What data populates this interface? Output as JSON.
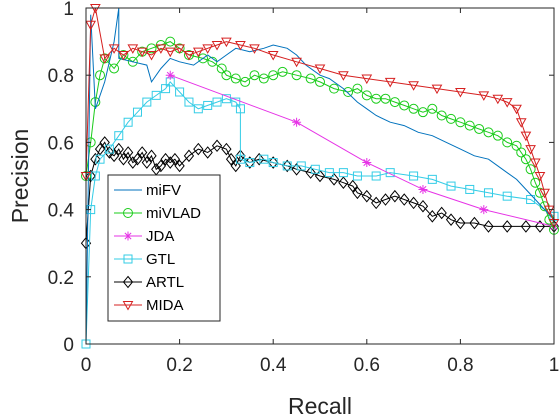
{
  "chart_data": {
    "type": "line",
    "xlabel": "Recall",
    "ylabel": "Precision",
    "xlim": [
      0,
      1
    ],
    "ylim": [
      0,
      1
    ],
    "xticks": [
      "0",
      "0.2",
      "0.4",
      "0.6",
      "0.8",
      "1"
    ],
    "yticks": [
      "0",
      "0.2",
      "0.4",
      "0.6",
      "0.8",
      "1"
    ],
    "grid": false,
    "legend_position": "lower-left",
    "series": [
      {
        "name": "miFV",
        "color": "#0072BD",
        "marker": "none",
        "points": [
          [
            0.0,
            0.0
          ],
          [
            0.01,
            0.98
          ],
          [
            0.02,
            0.7
          ],
          [
            0.04,
            0.78
          ],
          [
            0.06,
            0.9
          ],
          [
            0.07,
            1.0
          ],
          [
            0.07,
            0.85
          ],
          [
            0.1,
            0.84
          ],
          [
            0.13,
            0.83
          ],
          [
            0.14,
            0.78
          ],
          [
            0.16,
            0.82
          ],
          [
            0.18,
            0.85
          ],
          [
            0.2,
            0.84
          ],
          [
            0.23,
            0.83
          ],
          [
            0.26,
            0.86
          ],
          [
            0.28,
            0.84
          ],
          [
            0.3,
            0.86
          ],
          [
            0.32,
            0.88
          ],
          [
            0.35,
            0.87
          ],
          [
            0.38,
            0.88
          ],
          [
            0.4,
            0.89
          ],
          [
            0.43,
            0.88
          ],
          [
            0.45,
            0.86
          ],
          [
            0.47,
            0.83
          ],
          [
            0.5,
            0.8
          ],
          [
            0.52,
            0.79
          ],
          [
            0.55,
            0.76
          ],
          [
            0.58,
            0.72
          ],
          [
            0.6,
            0.7
          ],
          [
            0.62,
            0.68
          ],
          [
            0.65,
            0.66
          ],
          [
            0.68,
            0.65
          ],
          [
            0.71,
            0.63
          ],
          [
            0.74,
            0.62
          ],
          [
            0.77,
            0.6
          ],
          [
            0.8,
            0.58
          ],
          [
            0.83,
            0.56
          ],
          [
            0.86,
            0.55
          ],
          [
            0.89,
            0.52
          ],
          [
            0.92,
            0.49
          ],
          [
            0.94,
            0.46
          ],
          [
            0.96,
            0.43
          ],
          [
            0.98,
            0.4
          ],
          [
            1.0,
            0.37
          ]
        ]
      },
      {
        "name": "miVLAD",
        "color": "#1ACC1A",
        "marker": "circle",
        "points": [
          [
            0.0,
            0.5
          ],
          [
            0.01,
            0.6
          ],
          [
            0.02,
            0.72
          ],
          [
            0.03,
            0.8
          ],
          [
            0.04,
            0.85
          ],
          [
            0.06,
            0.82
          ],
          [
            0.08,
            0.86
          ],
          [
            0.1,
            0.84
          ],
          [
            0.12,
            0.87
          ],
          [
            0.14,
            0.88
          ],
          [
            0.16,
            0.89
          ],
          [
            0.18,
            0.9
          ],
          [
            0.2,
            0.88
          ],
          [
            0.22,
            0.86
          ],
          [
            0.25,
            0.85
          ],
          [
            0.27,
            0.84
          ],
          [
            0.29,
            0.82
          ],
          [
            0.3,
            0.8
          ],
          [
            0.32,
            0.79
          ],
          [
            0.34,
            0.78
          ],
          [
            0.36,
            0.8
          ],
          [
            0.38,
            0.79
          ],
          [
            0.4,
            0.8
          ],
          [
            0.42,
            0.81
          ],
          [
            0.45,
            0.8
          ],
          [
            0.48,
            0.79
          ],
          [
            0.5,
            0.78
          ],
          [
            0.53,
            0.76
          ],
          [
            0.56,
            0.75
          ],
          [
            0.58,
            0.76
          ],
          [
            0.6,
            0.74
          ],
          [
            0.62,
            0.73
          ],
          [
            0.64,
            0.73
          ],
          [
            0.66,
            0.72
          ],
          [
            0.68,
            0.71
          ],
          [
            0.7,
            0.7
          ],
          [
            0.72,
            0.69
          ],
          [
            0.74,
            0.7
          ],
          [
            0.76,
            0.68
          ],
          [
            0.78,
            0.67
          ],
          [
            0.8,
            0.66
          ],
          [
            0.82,
            0.65
          ],
          [
            0.84,
            0.64
          ],
          [
            0.86,
            0.63
          ],
          [
            0.88,
            0.62
          ],
          [
            0.9,
            0.6
          ],
          [
            0.92,
            0.59
          ],
          [
            0.93,
            0.57
          ],
          [
            0.94,
            0.55
          ],
          [
            0.95,
            0.52
          ],
          [
            0.96,
            0.48
          ],
          [
            0.97,
            0.45
          ],
          [
            0.98,
            0.41
          ],
          [
            0.99,
            0.37
          ],
          [
            1.0,
            0.34
          ]
        ]
      },
      {
        "name": "JDA",
        "color": "#E633E6",
        "marker": "asterisk",
        "points": [
          [
            0.18,
            0.8
          ],
          [
            0.45,
            0.66
          ],
          [
            0.6,
            0.54
          ],
          [
            0.72,
            0.46
          ],
          [
            0.85,
            0.4
          ],
          [
            1.0,
            0.35
          ]
        ]
      },
      {
        "name": "GTL",
        "color": "#33CCE6",
        "marker": "square",
        "points": [
          [
            0.0,
            0.0
          ],
          [
            0.01,
            0.4
          ],
          [
            0.02,
            0.5
          ],
          [
            0.03,
            0.55
          ],
          [
            0.05,
            0.58
          ],
          [
            0.07,
            0.62
          ],
          [
            0.09,
            0.66
          ],
          [
            0.11,
            0.69
          ],
          [
            0.13,
            0.72
          ],
          [
            0.15,
            0.74
          ],
          [
            0.17,
            0.76
          ],
          [
            0.18,
            0.78
          ],
          [
            0.2,
            0.75
          ],
          [
            0.22,
            0.72
          ],
          [
            0.24,
            0.7
          ],
          [
            0.26,
            0.71
          ],
          [
            0.28,
            0.72
          ],
          [
            0.3,
            0.73
          ],
          [
            0.32,
            0.72
          ],
          [
            0.33,
            0.7
          ],
          [
            0.33,
            0.55
          ],
          [
            0.35,
            0.54
          ],
          [
            0.38,
            0.55
          ],
          [
            0.4,
            0.54
          ],
          [
            0.43,
            0.53
          ],
          [
            0.46,
            0.53
          ],
          [
            0.49,
            0.52
          ],
          [
            0.52,
            0.51
          ],
          [
            0.55,
            0.51
          ],
          [
            0.58,
            0.5
          ],
          [
            0.62,
            0.5
          ],
          [
            0.65,
            0.51
          ],
          [
            0.7,
            0.5
          ],
          [
            0.74,
            0.49
          ],
          [
            0.78,
            0.47
          ],
          [
            0.82,
            0.46
          ],
          [
            0.86,
            0.45
          ],
          [
            0.9,
            0.44
          ],
          [
            0.95,
            0.43
          ],
          [
            1.0,
            0.38
          ]
        ]
      },
      {
        "name": "ARTL",
        "color": "#000000",
        "marker": "diamond",
        "points": [
          [
            0.0,
            0.3
          ],
          [
            0.01,
            0.5
          ],
          [
            0.02,
            0.55
          ],
          [
            0.03,
            0.58
          ],
          [
            0.04,
            0.6
          ],
          [
            0.05,
            0.57
          ],
          [
            0.06,
            0.56
          ],
          [
            0.07,
            0.58
          ],
          [
            0.08,
            0.55
          ],
          [
            0.09,
            0.57
          ],
          [
            0.1,
            0.54
          ],
          [
            0.11,
            0.55
          ],
          [
            0.12,
            0.57
          ],
          [
            0.13,
            0.54
          ],
          [
            0.14,
            0.56
          ],
          [
            0.15,
            0.52
          ],
          [
            0.16,
            0.53
          ],
          [
            0.17,
            0.55
          ],
          [
            0.18,
            0.54
          ],
          [
            0.19,
            0.55
          ],
          [
            0.2,
            0.53
          ],
          [
            0.22,
            0.56
          ],
          [
            0.24,
            0.58
          ],
          [
            0.26,
            0.57
          ],
          [
            0.28,
            0.59
          ],
          [
            0.3,
            0.58
          ],
          [
            0.31,
            0.55
          ],
          [
            0.32,
            0.53
          ],
          [
            0.33,
            0.56
          ],
          [
            0.35,
            0.54
          ],
          [
            0.37,
            0.55
          ],
          [
            0.4,
            0.54
          ],
          [
            0.43,
            0.53
          ],
          [
            0.45,
            0.52
          ],
          [
            0.48,
            0.51
          ],
          [
            0.5,
            0.5
          ],
          [
            0.53,
            0.49
          ],
          [
            0.55,
            0.48
          ],
          [
            0.57,
            0.47
          ],
          [
            0.58,
            0.45
          ],
          [
            0.6,
            0.44
          ],
          [
            0.62,
            0.42
          ],
          [
            0.64,
            0.43
          ],
          [
            0.66,
            0.44
          ],
          [
            0.68,
            0.43
          ],
          [
            0.7,
            0.42
          ],
          [
            0.72,
            0.41
          ],
          [
            0.74,
            0.38
          ],
          [
            0.76,
            0.39
          ],
          [
            0.78,
            0.37
          ],
          [
            0.8,
            0.36
          ],
          [
            0.83,
            0.36
          ],
          [
            0.86,
            0.35
          ],
          [
            0.9,
            0.35
          ],
          [
            0.94,
            0.35
          ],
          [
            0.97,
            0.35
          ],
          [
            1.0,
            0.35
          ]
        ]
      },
      {
        "name": "MIDA",
        "color": "#D62020",
        "marker": "triangle-down",
        "points": [
          [
            0.0,
            0.5
          ],
          [
            0.01,
            0.95
          ],
          [
            0.02,
            1.0
          ],
          [
            0.04,
            0.85
          ],
          [
            0.06,
            0.88
          ],
          [
            0.08,
            0.86
          ],
          [
            0.1,
            0.88
          ],
          [
            0.12,
            0.87
          ],
          [
            0.14,
            0.86
          ],
          [
            0.16,
            0.88
          ],
          [
            0.18,
            0.87
          ],
          [
            0.2,
            0.88
          ],
          [
            0.22,
            0.86
          ],
          [
            0.24,
            0.87
          ],
          [
            0.26,
            0.88
          ],
          [
            0.28,
            0.89
          ],
          [
            0.3,
            0.9
          ],
          [
            0.33,
            0.89
          ],
          [
            0.36,
            0.88
          ],
          [
            0.4,
            0.86
          ],
          [
            0.45,
            0.84
          ],
          [
            0.5,
            0.82
          ],
          [
            0.55,
            0.8
          ],
          [
            0.6,
            0.79
          ],
          [
            0.65,
            0.78
          ],
          [
            0.7,
            0.77
          ],
          [
            0.75,
            0.76
          ],
          [
            0.8,
            0.75
          ],
          [
            0.85,
            0.74
          ],
          [
            0.88,
            0.73
          ],
          [
            0.9,
            0.72
          ],
          [
            0.92,
            0.7
          ],
          [
            0.93,
            0.66
          ],
          [
            0.94,
            0.62
          ],
          [
            0.95,
            0.58
          ],
          [
            0.96,
            0.54
          ],
          [
            0.97,
            0.5
          ],
          [
            0.98,
            0.45
          ],
          [
            0.99,
            0.4
          ],
          [
            1.0,
            0.36
          ]
        ]
      }
    ]
  }
}
